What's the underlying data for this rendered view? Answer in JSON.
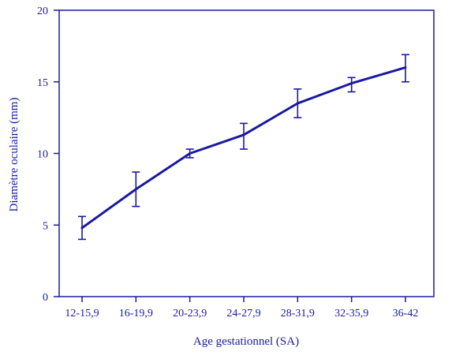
{
  "chart_data": {
    "type": "line",
    "title": "",
    "xlabel": "Age gestationnel (SA)",
    "ylabel": "Diamètre oculaire (mm)",
    "categories": [
      "12-15,9",
      "16-19,9",
      "20-23,9",
      "24-27,9",
      "28-31,9",
      "32-35,9",
      "36-42"
    ],
    "series": [
      {
        "values": [
          4.8,
          7.5,
          10.0,
          11.3,
          13.5,
          14.9,
          16.0
        ],
        "error_low": [
          4.0,
          6.3,
          9.7,
          10.3,
          12.5,
          14.3,
          15.0
        ],
        "error_high": [
          5.6,
          8.7,
          10.3,
          12.1,
          14.5,
          15.3,
          16.9
        ]
      }
    ],
    "ylim": [
      0,
      20
    ],
    "yticks": [
      0,
      5,
      10,
      15,
      20
    ],
    "grid": false,
    "color": "#1a1aa0"
  }
}
